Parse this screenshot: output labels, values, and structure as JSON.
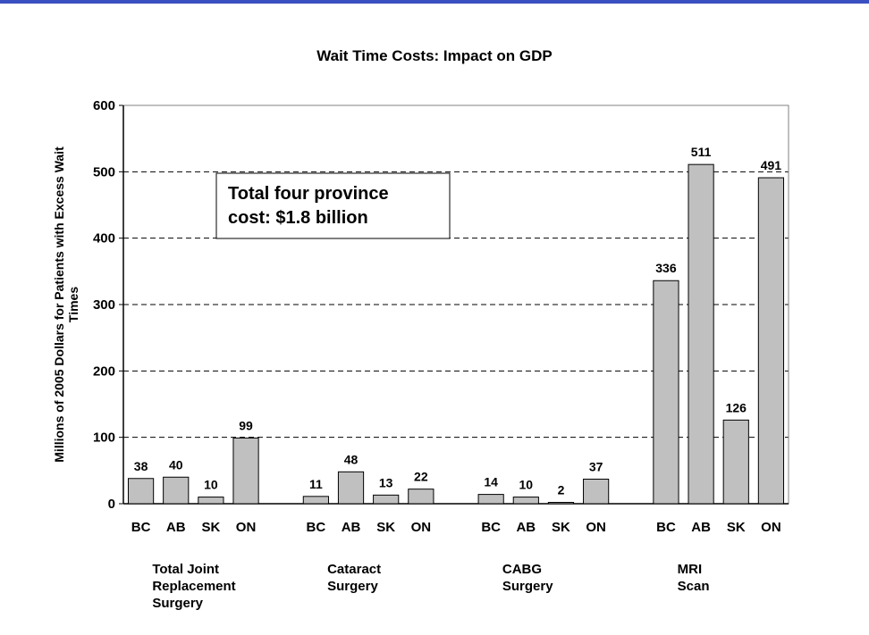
{
  "chart_data": {
    "type": "bar",
    "title": "Wait Time Costs: Impact on GDP",
    "ylabel_lines": [
      "Millions of 2005 Dollars for Patients with Excess Wait",
      "Times"
    ],
    "xlabel": "",
    "ylim": [
      0,
      600
    ],
    "yticks": [
      0,
      100,
      200,
      300,
      400,
      500,
      600
    ],
    "grid": true,
    "bar_color": "#c0c0c0",
    "annotation_lines": [
      "Total four province",
      "cost: $1.8 billion"
    ],
    "groups": [
      {
        "label_lines": [
          "Total Joint",
          "Replacement",
          "Surgery"
        ],
        "categories": [
          "BC",
          "AB",
          "SK",
          "ON"
        ],
        "values": [
          38,
          40,
          10,
          99
        ]
      },
      {
        "label_lines": [
          "Cataract",
          "Surgery"
        ],
        "categories": [
          "BC",
          "AB",
          "SK",
          "ON"
        ],
        "values": [
          11,
          48,
          13,
          22
        ]
      },
      {
        "label_lines": [
          "CABG",
          "Surgery"
        ],
        "categories": [
          "BC",
          "AB",
          "SK",
          "ON"
        ],
        "values": [
          14,
          10,
          2,
          37
        ]
      },
      {
        "label_lines": [
          "MRI",
          "Scan"
        ],
        "categories": [
          "BC",
          "AB",
          "SK",
          "ON"
        ],
        "values": [
          336,
          511,
          126,
          491
        ]
      }
    ]
  }
}
